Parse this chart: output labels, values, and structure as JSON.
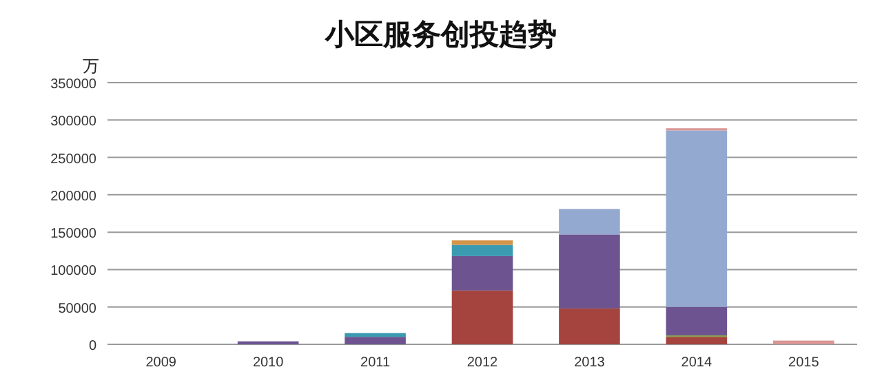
{
  "chart_data": {
    "type": "bar",
    "title": "小区服务创投趋势",
    "ylabel": "万",
    "stacked": true,
    "grid": "y",
    "categories": [
      "2009",
      "2010",
      "2011",
      "2012",
      "2013",
      "2014",
      "2015"
    ],
    "ylim": [
      0,
      350000
    ],
    "yticks": [
      0,
      50000,
      100000,
      150000,
      200000,
      250000,
      300000,
      350000
    ],
    "series": [
      {
        "color": "#a5443f",
        "values": [
          null,
          null,
          null,
          72000,
          48000,
          10000,
          null
        ]
      },
      {
        "color": "#8aa050",
        "values": [
          null,
          null,
          null,
          null,
          null,
          2000,
          null
        ]
      },
      {
        "color": "#6d5490",
        "values": [
          null,
          4000,
          10000,
          46000,
          99000,
          38000,
          null
        ]
      },
      {
        "color": "#3a9bb0",
        "values": [
          null,
          null,
          5000,
          15000,
          null,
          null,
          null
        ]
      },
      {
        "color": "#d49448",
        "values": [
          null,
          null,
          null,
          6000,
          null,
          null,
          null
        ]
      },
      {
        "color": "#93a9d0",
        "values": [
          null,
          null,
          null,
          null,
          34000,
          236000,
          null
        ]
      },
      {
        "color": "#d99694",
        "values": [
          null,
          null,
          null,
          null,
          null,
          3000,
          5000
        ]
      }
    ]
  }
}
